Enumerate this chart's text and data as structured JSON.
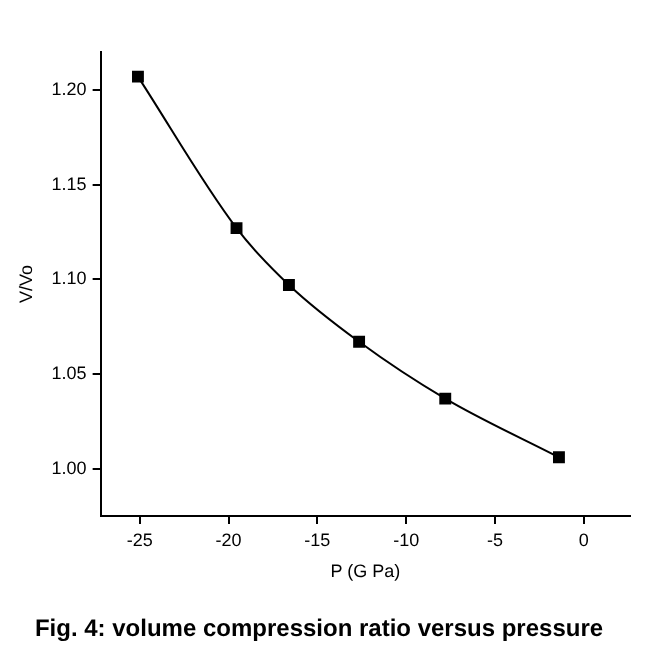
{
  "chart_data": {
    "type": "line",
    "title": "Fig. 4: volume compression ratio versus pressure",
    "xlabel": "P (G Pa)",
    "ylabel": "V/Vo",
    "x": [
      -25.1,
      -19.55,
      -16.6,
      -12.65,
      -7.8,
      -1.4
    ],
    "series": [
      {
        "color": "#000000",
        "values": [
          1.207,
          1.127,
          1.097,
          1.067,
          1.037,
          1.006
        ]
      }
    ],
    "xlim": [
      -27.2,
      2.6
    ],
    "xticks": [
      -25,
      -20,
      -15,
      -10,
      -5,
      0
    ],
    "ylim": [
      0.975,
      1.22
    ],
    "yticks": [
      {
        "value": 1.0,
        "label": "1.00"
      },
      {
        "value": 1.05,
        "label": "1.05"
      },
      {
        "value": 1.1,
        "label": "1.10"
      },
      {
        "value": 1.15,
        "label": "1.15"
      },
      {
        "value": 1.2,
        "label": "1.20"
      }
    ],
    "grid": false,
    "legend": false,
    "marker": "square",
    "line_style": "solid"
  }
}
